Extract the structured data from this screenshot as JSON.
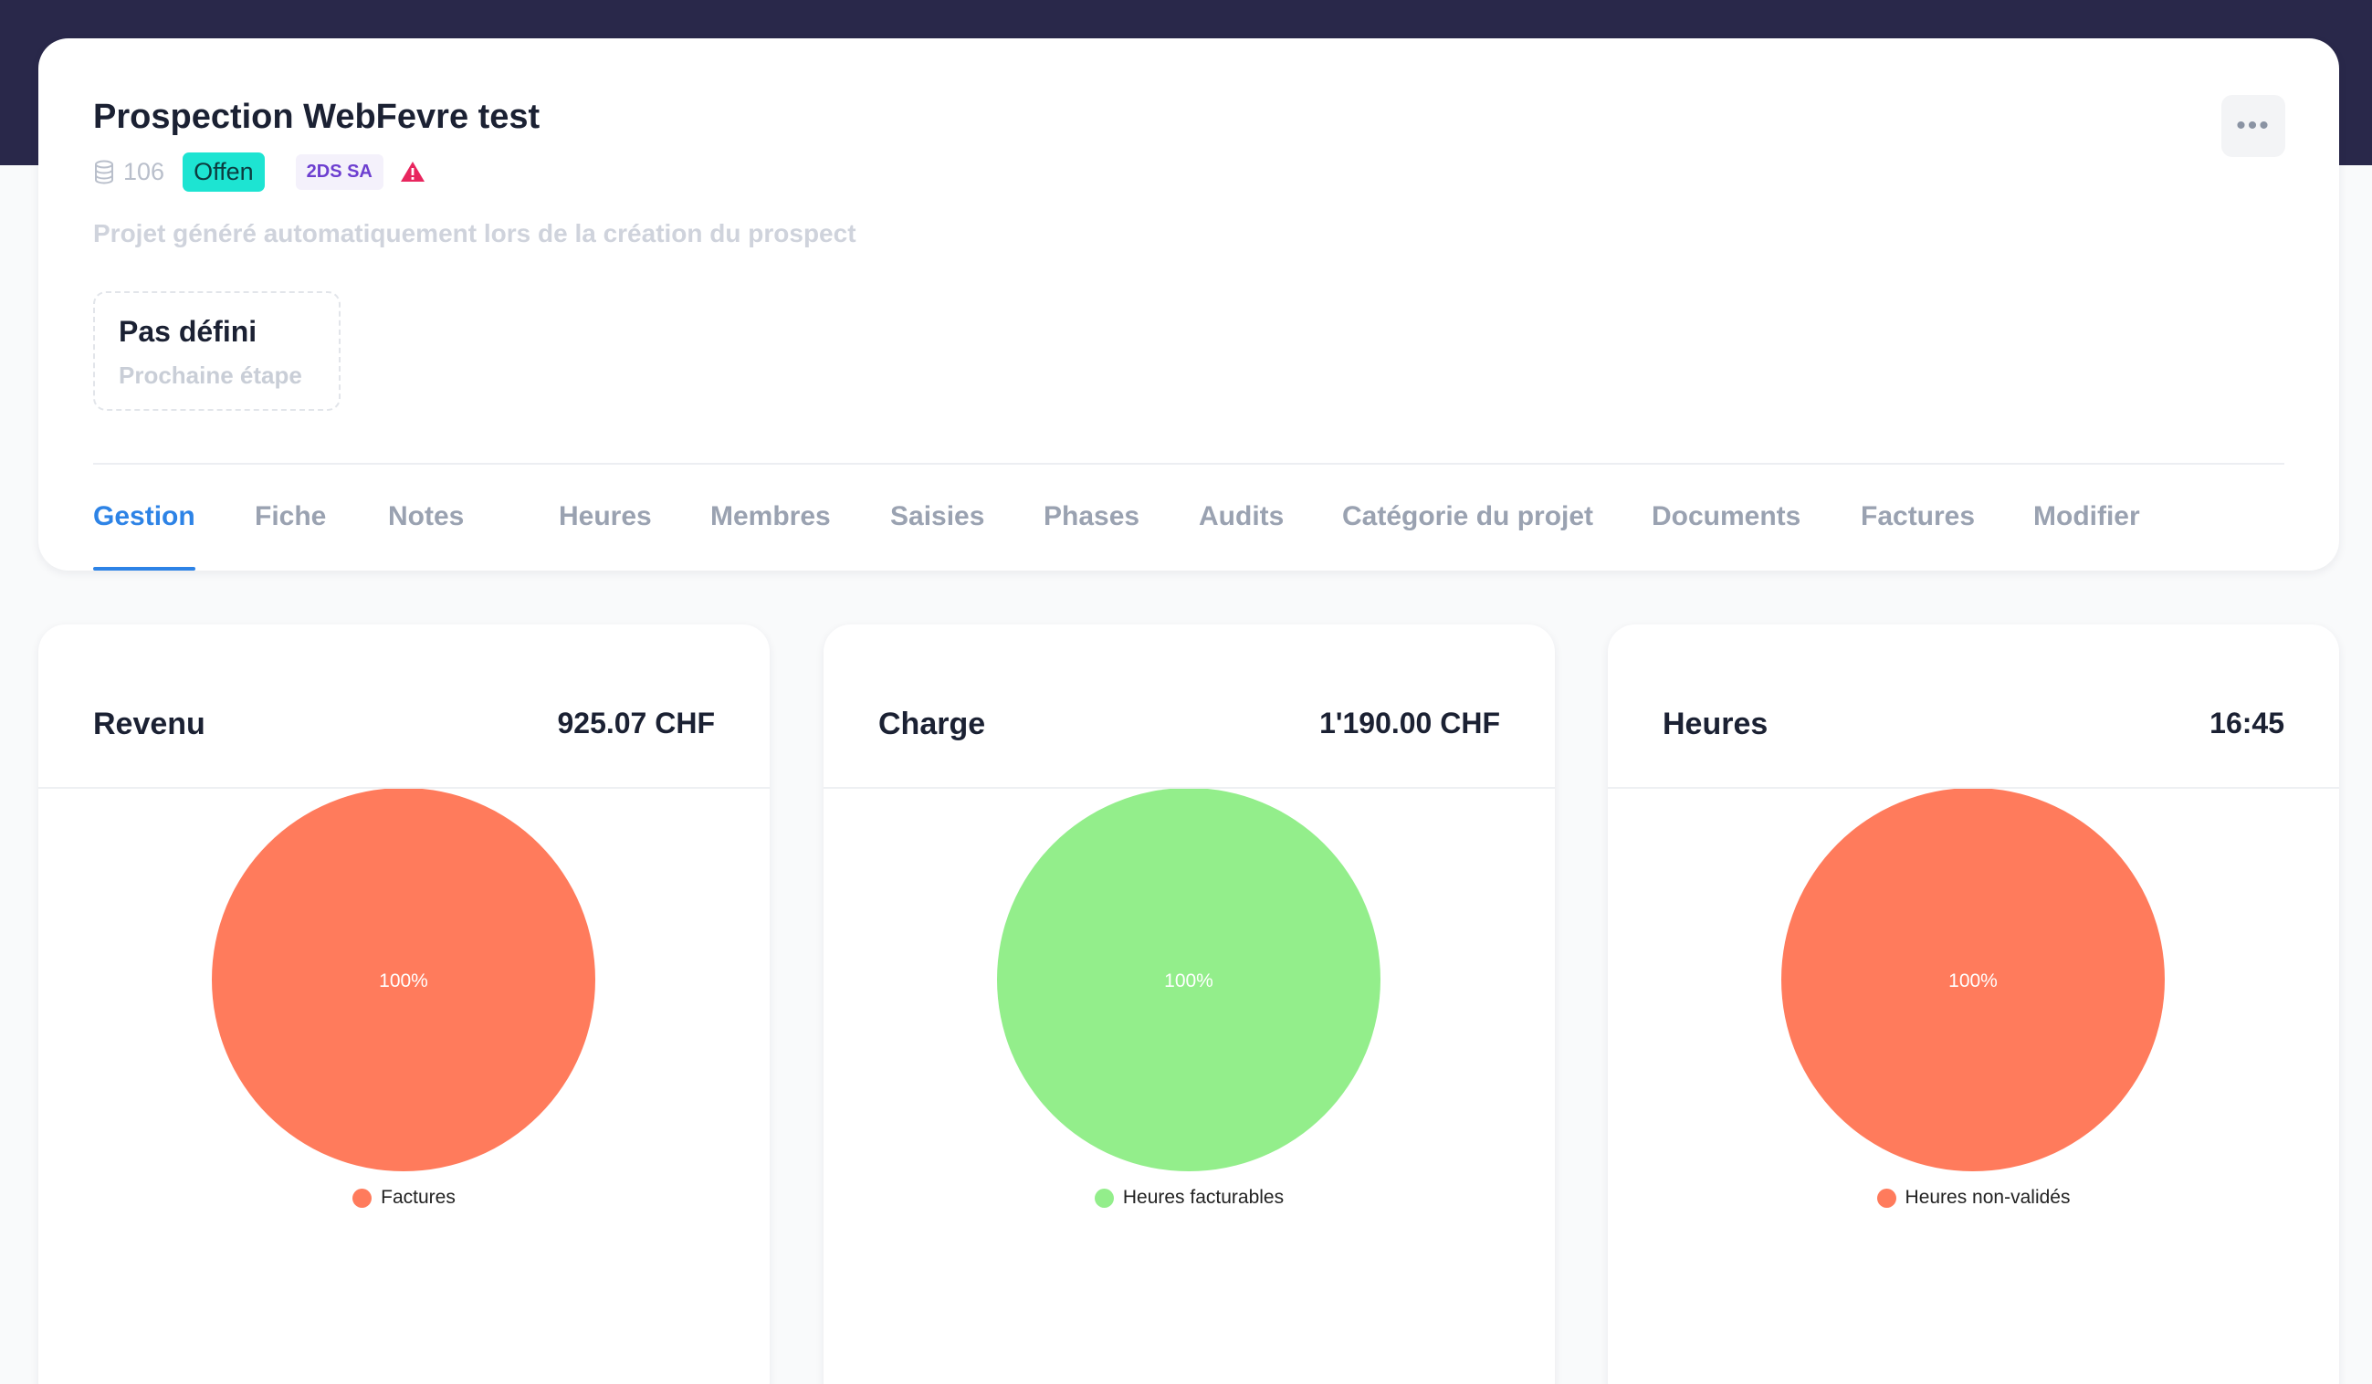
{
  "project": {
    "title": "Prospection WebFevre test",
    "id": "106",
    "status": "Offen",
    "company": "2DS SA",
    "description": "Projet généré automatiquement lors de la création du prospect",
    "next_step": {
      "title": "Pas défini",
      "subtitle": "Prochaine étape"
    },
    "more_button_icon": "more-horizontal-icon",
    "status_color": "#1de4d2",
    "warning_color": "#e8265e"
  },
  "tabs": [
    {
      "label": "Gestion",
      "active": true
    },
    {
      "label": "Fiche",
      "active": false
    },
    {
      "label": "Notes",
      "active": false
    },
    {
      "label": "Heures",
      "active": false
    },
    {
      "label": "Membres",
      "active": false
    },
    {
      "label": "Saisies",
      "active": false
    },
    {
      "label": "Phases",
      "active": false
    },
    {
      "label": "Audits",
      "active": false
    },
    {
      "label": "Catégorie du projet",
      "active": false
    },
    {
      "label": "Documents",
      "active": false
    },
    {
      "label": "Factures",
      "active": false
    },
    {
      "label": "Modifier",
      "active": false
    }
  ],
  "stats": [
    {
      "title": "Revenu",
      "value": "925.07 CHF"
    },
    {
      "title": "Charge",
      "value": "1'190.00 CHF"
    },
    {
      "title": "Heures",
      "value": "16:45"
    }
  ],
  "chart_data": [
    {
      "type": "pie",
      "categories": [
        "Factures"
      ],
      "values": [
        100
      ],
      "labels": [
        "100%"
      ],
      "colors": [
        "#ff7b5c"
      ],
      "legend": "bottom"
    },
    {
      "type": "pie",
      "categories": [
        "Heures facturables"
      ],
      "values": [
        100
      ],
      "labels": [
        "100%"
      ],
      "colors": [
        "#93ee8b"
      ],
      "legend": "bottom"
    },
    {
      "type": "pie",
      "categories": [
        "Heures non-validés"
      ],
      "values": [
        100
      ],
      "labels": [
        "100%"
      ],
      "colors": [
        "#ff7b5c"
      ],
      "legend": "bottom"
    }
  ]
}
